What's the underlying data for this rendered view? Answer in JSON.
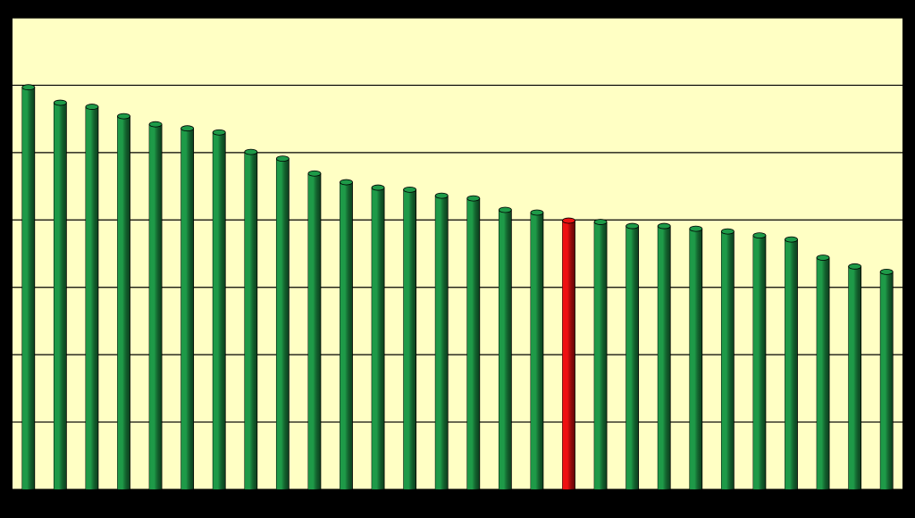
{
  "chart_data": {
    "type": "bar",
    "values": [
      5.97,
      5.74,
      5.68,
      5.54,
      5.42,
      5.36,
      5.3,
      5.01,
      4.91,
      4.69,
      4.56,
      4.48,
      4.45,
      4.36,
      4.32,
      4.15,
      4.11,
      3.99,
      3.97,
      3.91,
      3.91,
      3.87,
      3.83,
      3.77,
      3.71,
      3.44,
      3.31,
      3.23
    ],
    "colors": [
      "#1e9a48",
      "#1e9a48",
      "#1e9a48",
      "#1e9a48",
      "#1e9a48",
      "#1e9a48",
      "#1e9a48",
      "#1e9a48",
      "#1e9a48",
      "#1e9a48",
      "#1e9a48",
      "#1e9a48",
      "#1e9a48",
      "#1e9a48",
      "#1e9a48",
      "#1e9a48",
      "#1e9a48",
      "#ee1111",
      "#1e9a48",
      "#1e9a48",
      "#1e9a48",
      "#1e9a48",
      "#1e9a48",
      "#1e9a48",
      "#1e9a48",
      "#1e9a48",
      "#1e9a48",
      "#1e9a48"
    ],
    "ylim": [
      0,
      7
    ],
    "yticks": [
      0,
      1,
      2,
      3,
      4,
      5,
      6,
      7
    ],
    "grid": true
  }
}
